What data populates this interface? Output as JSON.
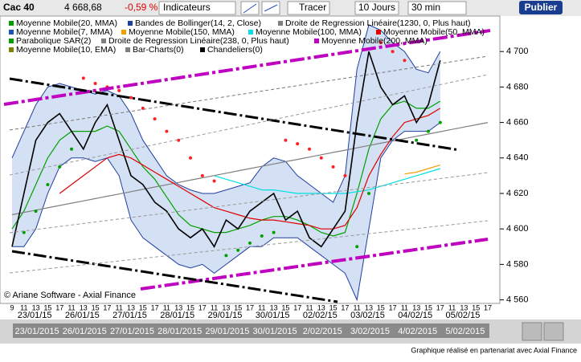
{
  "toolbar": {
    "instrument": "Cac 40",
    "price": "4 668,68",
    "change": "-0,59 %",
    "indicators": "Indicateurs",
    "draw": "Tracer",
    "period": "10 Jours",
    "interval": "30 min",
    "publish": "Publier"
  },
  "credit": "Graphique réalisé en partenariat avec Axial Finance",
  "chart_data": {
    "type": "line",
    "annotation": "© Ariane Software - Axial Finance",
    "categories": [
      "9",
      "11",
      "13",
      "15",
      "17",
      "11",
      "13",
      "15",
      "17",
      "11",
      "13",
      "15",
      "17",
      "11",
      "13",
      "15",
      "17",
      "11",
      "13",
      "15",
      "17",
      "11",
      "13",
      "15",
      "17",
      "11",
      "13",
      "15",
      "17",
      "11",
      "13",
      "15",
      "17",
      "11",
      "13",
      "15",
      "17",
      "11",
      "13",
      "15",
      "17"
    ],
    "days": [
      "23/01/15",
      "26/01/15",
      "27/01/15",
      "28/01/15",
      "29/01/15",
      "30/01/15",
      "02/02/15",
      "03/02/15",
      "04/02/15",
      "05/02/15"
    ],
    "dates": [
      "23/01/2015",
      "26/01/2015",
      "27/01/2015",
      "28/01/2015",
      "29/01/2015",
      "30/01/2015",
      "2/02/2015",
      "3/02/2015",
      "4/02/2015",
      "5/02/2015"
    ],
    "ylim": [
      4558,
      4720
    ],
    "yticks": [
      {
        "value": 4560,
        "label": "4 560"
      },
      {
        "value": 4580,
        "label": "4 580"
      },
      {
        "value": 4600,
        "label": "4 600"
      },
      {
        "value": 4620,
        "label": "4 620"
      },
      {
        "value": 4640,
        "label": "4 640"
      },
      {
        "value": 4660,
        "label": "4 660"
      },
      {
        "value": 4680,
        "label": "4 680"
      },
      {
        "value": 4700,
        "label": "4 700"
      }
    ],
    "grid": false,
    "series": [
      {
        "name": "Moyenne Mobile(20, MMA)",
        "color": "#00a000",
        "style": "line",
        "values": [
          4600,
          4610,
          4625,
          4640,
          4650,
          4655,
          4655,
          4655,
          4658,
          4655,
          4645,
          4635,
          4628,
          4618,
          4608,
          4602,
          4600,
          4598,
          4598,
          4600,
          4602,
          4605,
          4607,
          4607,
          4605,
          4602,
          4598,
          4596,
          4598,
          4620,
          4645,
          4662,
          4670,
          4672,
          4668,
          4668,
          4672,
          null,
          null,
          null,
          null
        ]
      },
      {
        "name": "Bandes de Bollinger(14, 2, Close)",
        "color": "#1f3f9f",
        "style": "band",
        "values": [
          4640,
          4655,
          4670,
          4680,
          4682,
          4680,
          4678,
          4676,
          4678,
          4675,
          4665,
          4650,
          4640,
          4630,
          4625,
          4622,
          4620,
          4620,
          4622,
          4624,
          4626,
          4635,
          4640,
          4638,
          4630,
          4625,
          4620,
          4615,
          4630,
          4690,
          4715,
          4712,
          4705,
          4700,
          4690,
          4688,
          4700,
          null,
          null,
          null,
          null
        ],
        "lower": [
          4590,
          4590,
          4600,
          4620,
          4635,
          4640,
          4640,
          4638,
          4640,
          4630,
          4605,
          4595,
          4590,
          4585,
          4580,
          4578,
          4580,
          4575,
          4580,
          4585,
          4590,
          4590,
          4595,
          4595,
          4595,
          4590,
          4585,
          4580,
          4575,
          4560,
          4600,
          4640,
          4650,
          4655,
          4655,
          4655,
          4660,
          null,
          null,
          null,
          null
        ]
      },
      {
        "name": "Droite de Regression Linéaire(1230, 0, Plus haut)",
        "color": "#808080",
        "style": "line",
        "values": [
          4608.0,
          4609.3,
          4610.6,
          4611.9,
          4613.2,
          4614.5,
          4615.8,
          4617.1,
          4618.4,
          4619.7,
          4621.0,
          4622.3,
          4623.6,
          4624.9,
          4626.2,
          4627.5,
          4628.8,
          4630.1,
          4631.4,
          4632.7,
          4634.0,
          4635.3,
          4636.6,
          4637.9,
          4639.2,
          4640.5,
          4641.8,
          4643.1,
          4644.4,
          4645.7,
          4647.0,
          4648.3,
          4649.6,
          4650.9,
          4652.2,
          4653.5,
          4654.8,
          4656.1,
          4657.4,
          4658.7,
          4660.0
        ]
      },
      {
        "name": "Moyenne Mobile(7, MMA)",
        "color": "#2050c0"
      },
      {
        "name": "Moyenne Mobile(150, MMA)",
        "color": "#f0a000",
        "style": "line",
        "values": [
          null,
          null,
          null,
          null,
          null,
          null,
          null,
          null,
          null,
          null,
          null,
          null,
          null,
          null,
          null,
          null,
          null,
          null,
          null,
          null,
          null,
          null,
          null,
          null,
          null,
          null,
          null,
          null,
          null,
          null,
          null,
          null,
          null,
          4631,
          4632,
          4634,
          4636,
          null,
          null,
          null,
          null
        ]
      },
      {
        "name": "Moyenne Mobile(100, MMA)",
        "color": "#00e0e0",
        "style": "line",
        "values": [
          null,
          null,
          null,
          null,
          null,
          null,
          null,
          null,
          null,
          null,
          null,
          null,
          null,
          null,
          null,
          null,
          null,
          4630,
          4628,
          4626,
          4624,
          4622,
          4622,
          4621,
          4620,
          4620,
          4620,
          4620,
          4620,
          4621,
          4622,
          4624,
          4626,
          4628,
          4630,
          4632,
          4634,
          null,
          null,
          null,
          null
        ]
      },
      {
        "name": "Moyenne Mobile(50, MMA)",
        "color": "#e00000",
        "style": "line",
        "values": [
          null,
          null,
          null,
          null,
          4620,
          4625,
          4630,
          4635,
          4640,
          4642,
          4640,
          4636,
          4632,
          4628,
          4624,
          4620,
          4616,
          4612,
          4610,
          4608,
          4606,
          4605,
          4605,
          4604,
          4603,
          4602,
          4600,
          4600,
          4602,
          4612,
          4630,
          4642,
          4652,
          4660,
          4662,
          4664,
          4668,
          null,
          null,
          null,
          null
        ]
      },
      {
        "name": "Parabolique SAR(2)",
        "color": "#00a000",
        "color_above": "#ff2020",
        "style": "dots",
        "values": [
          null,
          4598,
          4610,
          4625,
          4635,
          4645,
          4685,
          4682,
          4680,
          4678,
          4674,
          4668,
          4662,
          4655,
          4650,
          4640,
          4630,
          4627,
          4585,
          4588,
          4592,
          4596,
          4598,
          4650,
          4648,
          4645,
          4640,
          4635,
          4630,
          4590,
          4620,
          4705,
          4700,
          4695,
          4650,
          4655,
          4660,
          null,
          null,
          null,
          null
        ]
      },
      {
        "name": "Droite de Regression Linéaire(238, 0, Plus haut)",
        "color": "#808080"
      },
      {
        "name": "Moyenne Mobile(200, MMA)",
        "color": "#c000c0"
      },
      {
        "name": "Moyenne Mobile(10, EMA)",
        "color": "#808000"
      },
      {
        "name": "Bar-Charts(0)",
        "color": "#808080"
      },
      {
        "name": "Chandeliers(0)",
        "color": "#000000",
        "style": "line",
        "price": true,
        "values": [
          4590,
          4620,
          4650,
          4660,
          4665,
          4655,
          4645,
          4660,
          4670,
          4650,
          4630,
          4625,
          4615,
          4610,
          4600,
          4595,
          4600,
          4590,
          4605,
          4600,
          4610,
          4615,
          4620,
          4605,
          4610,
          4595,
          4590,
          4600,
          4610,
          4660,
          4700,
          4680,
          4670,
          4675,
          4660,
          4670,
          4695,
          null,
          null,
          null,
          null
        ]
      }
    ]
  }
}
